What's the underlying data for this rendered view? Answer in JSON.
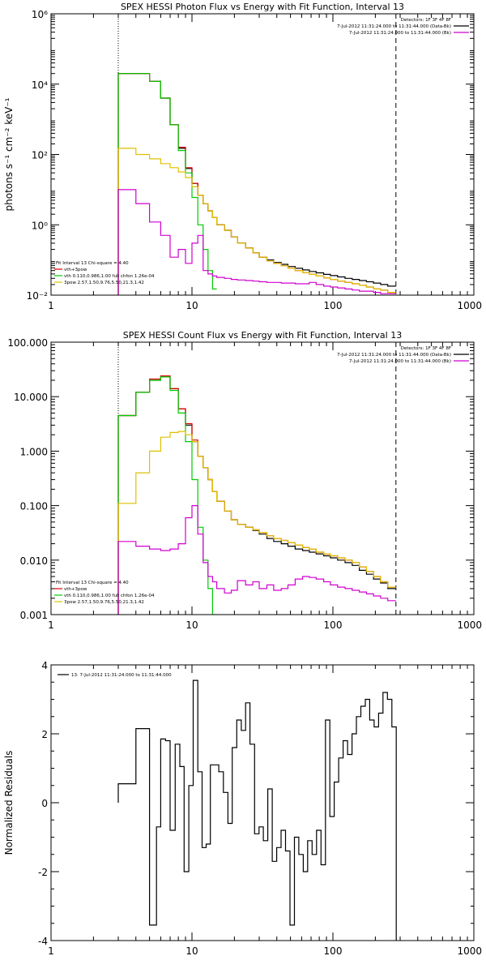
{
  "figure": {
    "background": "#ffffff",
    "axis_color": "#000000"
  },
  "series_styles": {
    "data": "#000000",
    "total": "#e00000",
    "vth": "#00cc00",
    "pow": "#e0c000",
    "bk": "#d000d0"
  },
  "chart_data": [
    {
      "id": "photon",
      "type": "line",
      "title": "SPEX HESSI Photon Flux vs Energy with Fit Function, Interval 13",
      "xlabel": "",
      "ylabel": "photons s⁻¹ cm⁻² keV⁻¹",
      "xscale": "log",
      "yscale": "log",
      "xlim": [
        1,
        1000
      ],
      "ylim": [
        0.01,
        1000000
      ],
      "xticks": [
        1,
        10,
        100,
        1000
      ],
      "xtick_labels": [
        "1",
        "10",
        "100",
        "1000"
      ],
      "yticks": [
        0.01,
        1,
        100,
        10000,
        1000000
      ],
      "ytick_labels": [
        "10⁻²",
        "10⁰",
        "10²",
        "10⁴",
        "10⁶"
      ],
      "grid": false,
      "vlines": [
        {
          "x": 3,
          "style": "dotted"
        },
        {
          "x": 280,
          "style": "dashed"
        }
      ],
      "legend_right": [
        "Detectors: 1F 3F 4F 8F",
        "7-Jul-2012 11:31:24.000 to 11:31:44.000 (Data-Bk)",
        "7-Jul-2012 11:31:24.000 to 11:31:44.000 (Bk)"
      ],
      "legend_left": [
        "Fit Interval 13   Chi-square = 4.40",
        "vth+3pow",
        "vth 0.110,0.986,1.00  full chfon 1.26e-04",
        "3pow 2.57,1.50,9.76,5.50,21.3,1.42"
      ],
      "series": [
        {
          "key": "data",
          "edges": [
            3,
            4,
            5,
            6,
            7,
            8,
            9,
            10,
            11,
            12,
            13,
            14,
            15,
            17,
            19,
            21,
            24,
            27,
            30,
            34,
            38,
            43,
            48,
            54,
            61,
            68,
            76,
            86,
            96,
            108,
            122,
            137,
            154,
            173,
            194,
            218,
            245,
            280
          ],
          "values": [
            20000,
            20000,
            12000,
            4000,
            700,
            150,
            40,
            15,
            7,
            4,
            2.5,
            1.6,
            1.0,
            0.7,
            0.45,
            0.3,
            0.22,
            0.16,
            0.12,
            0.1,
            0.085,
            0.075,
            0.065,
            0.058,
            0.052,
            0.047,
            0.043,
            0.039,
            0.036,
            0.033,
            0.03,
            0.028,
            0.026,
            0.024,
            0.022,
            0.02,
            0.018
          ]
        },
        {
          "key": "total",
          "edges": [
            3,
            4,
            5,
            6,
            7,
            8,
            9,
            10,
            11,
            12,
            13,
            14,
            15,
            17,
            19,
            21,
            24,
            27,
            30,
            34,
            38,
            43,
            48,
            54,
            61,
            68,
            76,
            86,
            96,
            108,
            122,
            137,
            154,
            173,
            194,
            218,
            245,
            280
          ],
          "values": [
            20000,
            20000,
            12000,
            4000,
            700,
            160,
            42,
            15,
            7,
            4,
            2.5,
            1.6,
            1.0,
            0.7,
            0.45,
            0.3,
            0.22,
            0.16,
            0.12,
            0.095,
            0.08,
            0.068,
            0.058,
            0.05,
            0.044,
            0.039,
            0.035,
            0.031,
            0.028,
            0.025,
            0.023,
            0.021,
            0.019,
            0.017,
            0.015,
            0.014,
            0.012
          ]
        },
        {
          "key": "vth",
          "edges": [
            3,
            4,
            5,
            6,
            7,
            8,
            9,
            10,
            11,
            12,
            13,
            14,
            15
          ],
          "values": [
            20000,
            20000,
            12000,
            4000,
            700,
            130,
            30,
            6,
            1.0,
            0.2,
            0.05,
            0.015
          ]
        },
        {
          "key": "pow",
          "edges": [
            3,
            4,
            5,
            6,
            7,
            8,
            9,
            10,
            11,
            12,
            13,
            14,
            15,
            17,
            19,
            21,
            24,
            27,
            30,
            34,
            38,
            43,
            48,
            54,
            61,
            68,
            76,
            86,
            96,
            108,
            122,
            137,
            154,
            173,
            194,
            218,
            245,
            280
          ],
          "values": [
            150,
            100,
            75,
            55,
            42,
            32,
            22,
            12,
            7,
            4,
            2.5,
            1.6,
            1.0,
            0.7,
            0.45,
            0.3,
            0.22,
            0.16,
            0.12,
            0.095,
            0.08,
            0.068,
            0.058,
            0.05,
            0.044,
            0.039,
            0.035,
            0.031,
            0.028,
            0.025,
            0.023,
            0.021,
            0.019,
            0.017,
            0.015,
            0.014,
            0.012
          ]
        },
        {
          "key": "bk",
          "edges": [
            3,
            4,
            5,
            6,
            7,
            8,
            9,
            10,
            11,
            12,
            13,
            14,
            15,
            17,
            19,
            21,
            24,
            27,
            30,
            34,
            38,
            43,
            48,
            54,
            61,
            68,
            76,
            86,
            96,
            108,
            122,
            137,
            154,
            173,
            194,
            218,
            245,
            280
          ],
          "values": [
            10,
            4,
            1.2,
            0.5,
            0.12,
            0.2,
            0.08,
            0.3,
            0.5,
            0.05,
            0.04,
            0.035,
            0.032,
            0.03,
            0.028,
            0.027,
            0.026,
            0.025,
            0.024,
            0.023,
            0.023,
            0.022,
            0.022,
            0.021,
            0.021,
            0.023,
            0.02,
            0.018,
            0.017,
            0.016,
            0.015,
            0.014,
            0.013,
            0.013,
            0.012,
            0.011,
            0.011
          ]
        }
      ]
    },
    {
      "id": "count",
      "type": "line",
      "title": "SPEX HESSI Count Flux vs Energy with Fit Function, Interval 13",
      "xlabel": "",
      "ylabel": "",
      "xscale": "log",
      "yscale": "log",
      "xlim": [
        1,
        1000
      ],
      "ylim": [
        0.001,
        100
      ],
      "xticks": [
        1,
        10,
        100,
        1000
      ],
      "xtick_labels": [
        "1",
        "10",
        "100",
        "1000"
      ],
      "yticks": [
        0.001,
        0.01,
        0.1,
        1,
        10,
        100
      ],
      "ytick_labels": [
        "0.001",
        "0.010",
        "0.100",
        "1.000",
        "10.000",
        "100.000"
      ],
      "grid": false,
      "vlines": [
        {
          "x": 3,
          "style": "dotted"
        },
        {
          "x": 280,
          "style": "dashed"
        }
      ],
      "legend_right": [
        "Detectors: 1F 3F 4F 8F",
        "7-Jul-2012 11:31:24.000 to 11:31:44.000 (Data-Bk)",
        "7-Jul-2012 11:31:24.000 to 11:31:44.000 (Bk)"
      ],
      "legend_left": [
        "Fit Interval 13   Chi-square = 4.40",
        "vth+3pow",
        "vth 0.110,0.986,1.00  full chfon 1.26e-04",
        "3pow 2.57,1.50,9.76,5.50,21.3,1.42"
      ],
      "series": [
        {
          "key": "data",
          "edges": [
            3,
            4,
            5,
            6,
            7,
            8,
            9,
            10,
            11,
            12,
            13,
            14,
            15,
            17,
            19,
            21,
            24,
            27,
            30,
            34,
            38,
            43,
            48,
            54,
            61,
            68,
            76,
            86,
            96,
            108,
            122,
            137,
            154,
            173,
            194,
            218,
            245,
            280
          ],
          "values": [
            4.5,
            12,
            20,
            23,
            14,
            6,
            3,
            1.5,
            0.8,
            0.5,
            0.3,
            0.18,
            0.12,
            0.08,
            0.055,
            0.045,
            0.04,
            0.035,
            0.03,
            0.025,
            0.022,
            0.02,
            0.018,
            0.016,
            0.015,
            0.014,
            0.013,
            0.012,
            0.011,
            0.01,
            0.009,
            0.008,
            0.0065,
            0.0055,
            0.0045,
            0.0038,
            0.003
          ]
        },
        {
          "key": "total",
          "edges": [
            3,
            4,
            5,
            6,
            7,
            8,
            9,
            10,
            11,
            12,
            13,
            14,
            15,
            17,
            19,
            21,
            24,
            27,
            30,
            34,
            38,
            43,
            48,
            54,
            61,
            68,
            76,
            86,
            96,
            108,
            122,
            137,
            154,
            173,
            194,
            218,
            245,
            280
          ],
          "values": [
            4.5,
            12,
            21,
            24,
            14,
            6,
            3.2,
            1.6,
            0.8,
            0.5,
            0.3,
            0.18,
            0.12,
            0.08,
            0.055,
            0.045,
            0.04,
            0.036,
            0.032,
            0.028,
            0.025,
            0.023,
            0.021,
            0.019,
            0.017,
            0.016,
            0.014,
            0.013,
            0.012,
            0.011,
            0.01,
            0.009,
            0.0075,
            0.0062,
            0.005,
            0.004,
            0.0032
          ]
        },
        {
          "key": "vth",
          "edges": [
            3,
            4,
            5,
            6,
            7,
            8,
            9,
            10,
            11,
            12,
            13,
            14,
            15
          ],
          "values": [
            4.5,
            12,
            20,
            23,
            13,
            5,
            1.5,
            0.3,
            0.04,
            0.01,
            0.003,
            0.001
          ]
        },
        {
          "key": "pow",
          "edges": [
            3,
            4,
            5,
            6,
            7,
            8,
            9,
            10,
            11,
            12,
            13,
            14,
            15,
            17,
            19,
            21,
            24,
            27,
            30,
            34,
            38,
            43,
            48,
            54,
            61,
            68,
            76,
            86,
            96,
            108,
            122,
            137,
            154,
            173,
            194,
            218,
            245,
            280
          ],
          "values": [
            0.11,
            0.4,
            1.0,
            1.8,
            2.2,
            2.3,
            2.0,
            1.5,
            0.8,
            0.5,
            0.3,
            0.18,
            0.12,
            0.08,
            0.055,
            0.045,
            0.04,
            0.036,
            0.032,
            0.028,
            0.025,
            0.023,
            0.021,
            0.019,
            0.017,
            0.016,
            0.014,
            0.013,
            0.012,
            0.011,
            0.01,
            0.009,
            0.0075,
            0.0062,
            0.005,
            0.004,
            0.0032
          ]
        },
        {
          "key": "bk",
          "edges": [
            3,
            4,
            5,
            6,
            7,
            8,
            9,
            10,
            11,
            12,
            13,
            14,
            15,
            17,
            19,
            21,
            24,
            27,
            30,
            34,
            38,
            43,
            48,
            54,
            61,
            68,
            76,
            86,
            96,
            108,
            122,
            137,
            154,
            173,
            194,
            218,
            245,
            280
          ],
          "values": [
            0.022,
            0.018,
            0.016,
            0.015,
            0.016,
            0.02,
            0.06,
            0.1,
            0.03,
            0.009,
            0.005,
            0.004,
            0.003,
            0.0025,
            0.0028,
            0.0042,
            0.0035,
            0.004,
            0.003,
            0.0035,
            0.0028,
            0.003,
            0.0035,
            0.0045,
            0.005,
            0.0048,
            0.0045,
            0.004,
            0.0035,
            0.0032,
            0.003,
            0.0028,
            0.0026,
            0.0024,
            0.0022,
            0.002,
            0.0018
          ]
        }
      ]
    },
    {
      "id": "residuals",
      "type": "line",
      "title": "",
      "xlabel": "",
      "ylabel": "Normalized Residuals",
      "xscale": "log",
      "yscale": "linear",
      "xlim": [
        1,
        1000
      ],
      "ylim": [
        -4,
        4
      ],
      "xticks": [
        1,
        10,
        100,
        1000
      ],
      "xtick_labels": [
        "1",
        "10",
        "100",
        "1000"
      ],
      "yticks": [
        -4,
        -2,
        0,
        2,
        4
      ],
      "ytick_labels": [
        "-4",
        "-2",
        "0",
        "2",
        "4"
      ],
      "grid": false,
      "legend": "13.  7-Jul-2012 11:31:24.000 to 11:31:44.000",
      "series": [
        {
          "key": "data",
          "edges": [
            3,
            4,
            5,
            5.6,
            6,
            6.5,
            7,
            7.6,
            8.2,
            8.8,
            9.5,
            10.2,
            11,
            11.8,
            12.6,
            13.5,
            14.5,
            15.5,
            16.7,
            18,
            19.3,
            20.8,
            22.4,
            24,
            25.8,
            27.8,
            29.9,
            32.1,
            34.5,
            37.1,
            39.9,
            42.9,
            46.1,
            49.6,
            53.3,
            57.3,
            61.6,
            66.2,
            71.2,
            76.5,
            82.3,
            88.5,
            95.1,
            102.2,
            109.9,
            118.2,
            127,
            136.6,
            146.8,
            157.8,
            169.7,
            182.4,
            196.1,
            210.8,
            226.7,
            243.7,
            262,
            281.6
          ],
          "values": [
            0.55,
            2.15,
            -3.55,
            -0.7,
            1.85,
            1.8,
            -0.8,
            1.7,
            1.05,
            -2.0,
            0.5,
            3.55,
            0.9,
            -1.3,
            -1.2,
            1.1,
            1.1,
            0.9,
            0.3,
            -0.6,
            1.6,
            2.4,
            2.1,
            2.9,
            1.7,
            -0.9,
            -0.7,
            -1.1,
            0.4,
            -1.7,
            -1.3,
            -0.8,
            -1.4,
            -3.55,
            -1.0,
            -1.5,
            -2.0,
            -1.1,
            -1.5,
            -0.8,
            -1.8,
            2.4,
            -0.4,
            0.6,
            1.3,
            1.8,
            1.4,
            2.0,
            2.5,
            2.8,
            3.0,
            2.4,
            2.2,
            2.6,
            3.2,
            3.0,
            2.2
          ]
        }
      ]
    }
  ]
}
